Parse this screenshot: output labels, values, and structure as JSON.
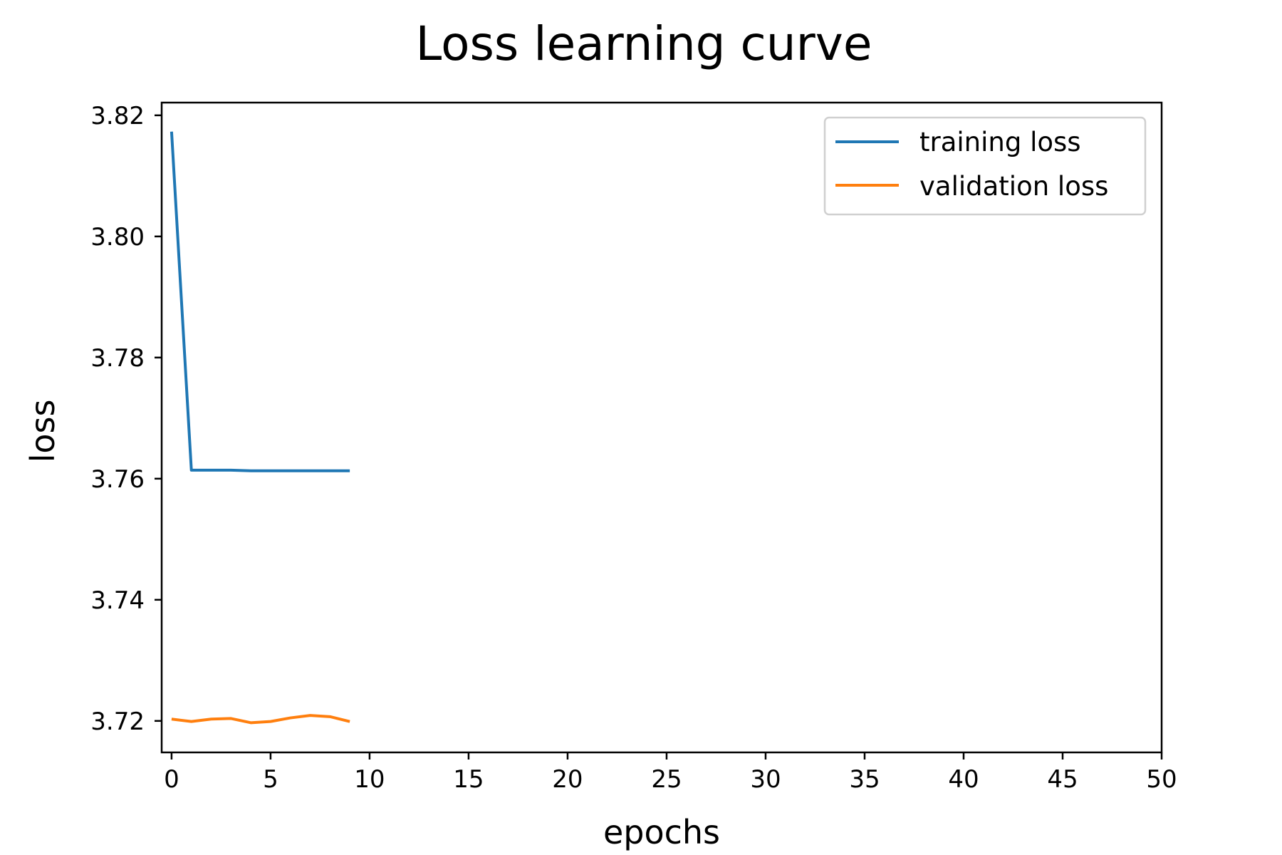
{
  "chart_data": {
    "type": "line",
    "title": "Loss learning curve",
    "xlabel": "epochs",
    "ylabel": "loss",
    "xlim": [
      -0.5,
      50
    ],
    "ylim": [
      3.7148,
      3.8221
    ],
    "xticks": [
      0,
      5,
      10,
      15,
      20,
      25,
      30,
      35,
      40,
      45,
      50
    ],
    "yticks": [
      3.72,
      3.74,
      3.76,
      3.78,
      3.8,
      3.82
    ],
    "ytick_labels": [
      "3.72",
      "3.74",
      "3.76",
      "3.78",
      "3.80",
      "3.82"
    ],
    "grid": false,
    "legend_position": "top-right",
    "series": [
      {
        "name": "training loss",
        "color": "#1f77b4",
        "x": [
          0,
          1,
          2,
          3,
          4,
          5,
          6,
          7,
          8,
          9
        ],
        "values": [
          3.8173,
          3.7614,
          3.7614,
          3.7614,
          3.7613,
          3.7613,
          3.7613,
          3.7613,
          3.7613,
          3.7613
        ]
      },
      {
        "name": "validation loss",
        "color": "#ff7f0e",
        "x": [
          0,
          1,
          2,
          3,
          4,
          5,
          6,
          7,
          8,
          9
        ],
        "values": [
          3.7203,
          3.7199,
          3.7203,
          3.7204,
          3.7197,
          3.7199,
          3.7205,
          3.7209,
          3.7207,
          3.7199
        ]
      }
    ]
  }
}
